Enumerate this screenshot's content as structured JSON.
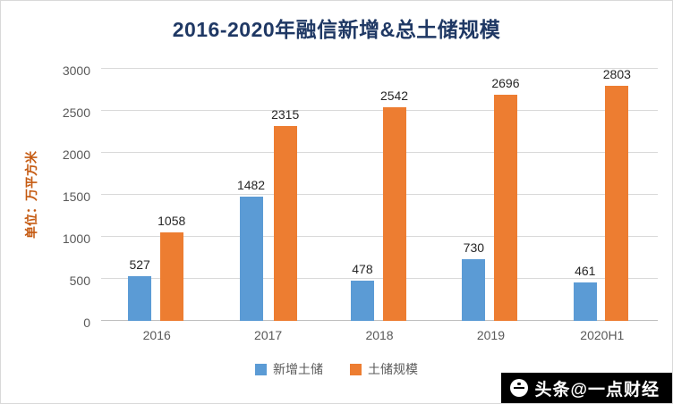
{
  "title": "2016-2020年融信新增&总土储规模",
  "y_axis_title": "单位：万平方米",
  "watermark": "头条@一点财经",
  "colors": {
    "blue_series": "#5B9BD5",
    "orange_series": "#ED7D31",
    "title_text": "#1F3864",
    "y_axis_title_text": "#C55A11",
    "axis_text": "#595959",
    "gridline": "#D9D9D9",
    "watermark_bg": "#000000"
  },
  "chart_data": {
    "type": "bar",
    "title": "2016-2020年融信新增&总土储规模",
    "ylabel": "单位：万平方米",
    "xlabel": "",
    "categories": [
      "2016",
      "2017",
      "2018",
      "2019",
      "2020H1"
    ],
    "series": [
      {
        "name": "新增土储",
        "color": "#5B9BD5",
        "values": [
          527,
          1482,
          478,
          730,
          461
        ]
      },
      {
        "name": "土储规模",
        "color": "#ED7D31",
        "values": [
          1058,
          2315,
          2542,
          2696,
          2803
        ]
      }
    ],
    "ylim": [
      0,
      3000
    ],
    "yticks": [
      0,
      500,
      1000,
      1500,
      2000,
      2500,
      3000
    ],
    "grid": true,
    "legend_position": "bottom"
  }
}
